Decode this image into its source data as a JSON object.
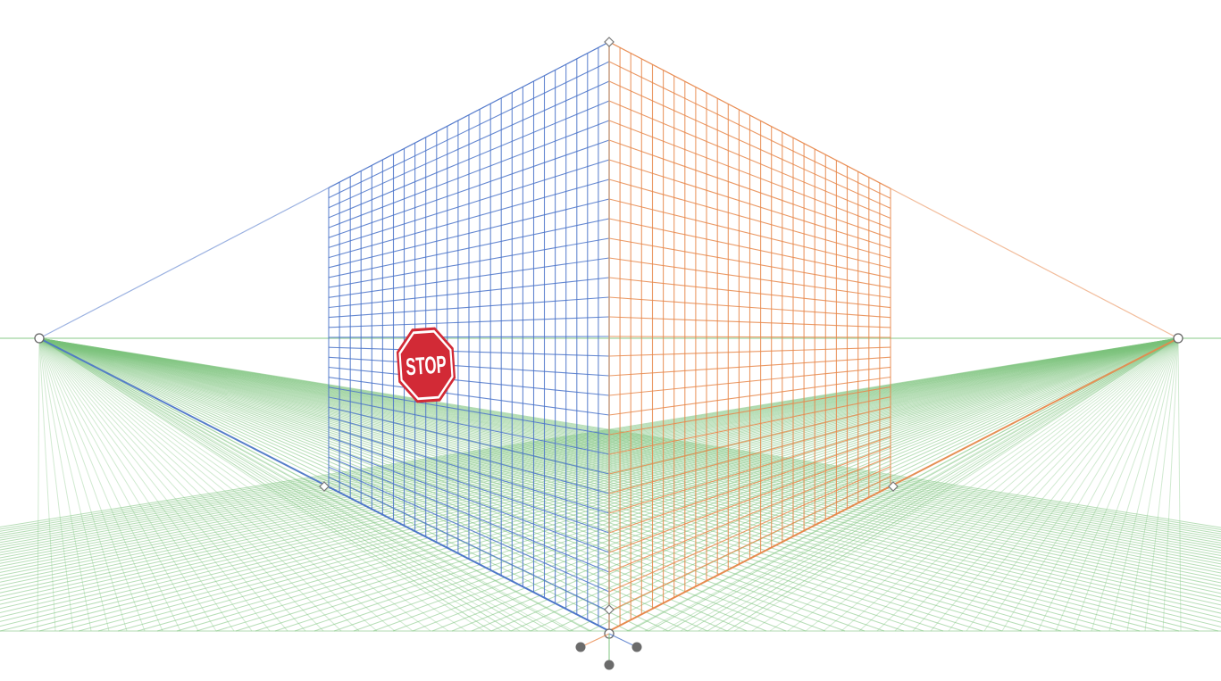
{
  "colors": {
    "left_plane": "#4a73c9",
    "right_plane": "#e8874a",
    "ground_plane": "#7cc27c",
    "horizon": "#9fd49f",
    "widget": "#6b6b6b",
    "stop_red": "#d22a36"
  },
  "sign": {
    "text": "STOP",
    "icon": "stop-sign-icon"
  },
  "widget": {
    "icon": "plane-switching-widget-icon"
  }
}
